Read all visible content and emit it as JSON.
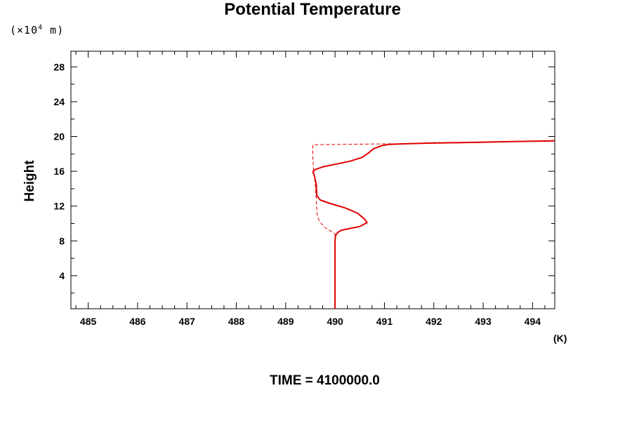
{
  "chart_data": {
    "type": "line",
    "title": "Potential Temperature",
    "ylabel": "Height",
    "y_unit_prefix": "(×10",
    "y_unit_exp": "4",
    "y_unit_suffix": " m)",
    "x_unit": "(K)",
    "footer": "TIME = 4100000.0",
    "xlim": [
      484.65,
      494.45
    ],
    "ylim": [
      0.2,
      29.8
    ],
    "x_ticks": [
      485,
      486,
      487,
      488,
      489,
      490,
      491,
      492,
      493,
      494
    ],
    "y_ticks": [
      4,
      8,
      12,
      16,
      20,
      24,
      28
    ],
    "grid": false,
    "series": [
      {
        "style": "solid",
        "color": "#e00000",
        "points": [
          [
            490.0,
            0.2
          ],
          [
            490.0,
            4
          ],
          [
            490.0,
            8
          ],
          [
            490.01,
            8.6
          ],
          [
            490.05,
            8.95
          ],
          [
            490.12,
            9.2
          ],
          [
            490.28,
            9.4
          ],
          [
            490.5,
            9.65
          ],
          [
            490.65,
            10.1
          ],
          [
            490.6,
            10.5
          ],
          [
            490.45,
            11.2
          ],
          [
            490.2,
            11.8
          ],
          [
            489.9,
            12.3
          ],
          [
            489.7,
            12.7
          ],
          [
            489.63,
            13.2
          ],
          [
            489.62,
            14.5
          ],
          [
            489.58,
            15.5
          ],
          [
            489.55,
            15.95
          ],
          [
            489.6,
            16.2
          ],
          [
            489.75,
            16.5
          ],
          [
            490.0,
            16.8
          ],
          [
            490.3,
            17.15
          ],
          [
            490.55,
            17.6
          ],
          [
            490.7,
            18.2
          ],
          [
            490.78,
            18.6
          ],
          [
            490.95,
            18.95
          ],
          [
            491.1,
            19.1
          ],
          [
            491.5,
            19.18
          ],
          [
            492.0,
            19.25
          ],
          [
            492.5,
            19.3
          ],
          [
            493.0,
            19.35
          ],
          [
            493.5,
            19.4
          ],
          [
            494.0,
            19.45
          ],
          [
            494.45,
            19.5
          ]
        ]
      },
      {
        "style": "dashed",
        "color": "#e00000",
        "points": [
          [
            490.0,
            0.2
          ],
          [
            490.0,
            8.8
          ],
          [
            489.92,
            9.1
          ],
          [
            489.78,
            9.6
          ],
          [
            489.68,
            10.3
          ],
          [
            489.64,
            11.0
          ],
          [
            489.62,
            12.5
          ],
          [
            489.6,
            14.5
          ],
          [
            489.57,
            16.0
          ],
          [
            489.55,
            17.5
          ],
          [
            489.55,
            19.05
          ],
          [
            491.0,
            19.15
          ],
          [
            492.0,
            19.2
          ],
          [
            493.0,
            19.3
          ],
          [
            494.45,
            19.55
          ]
        ]
      }
    ]
  }
}
